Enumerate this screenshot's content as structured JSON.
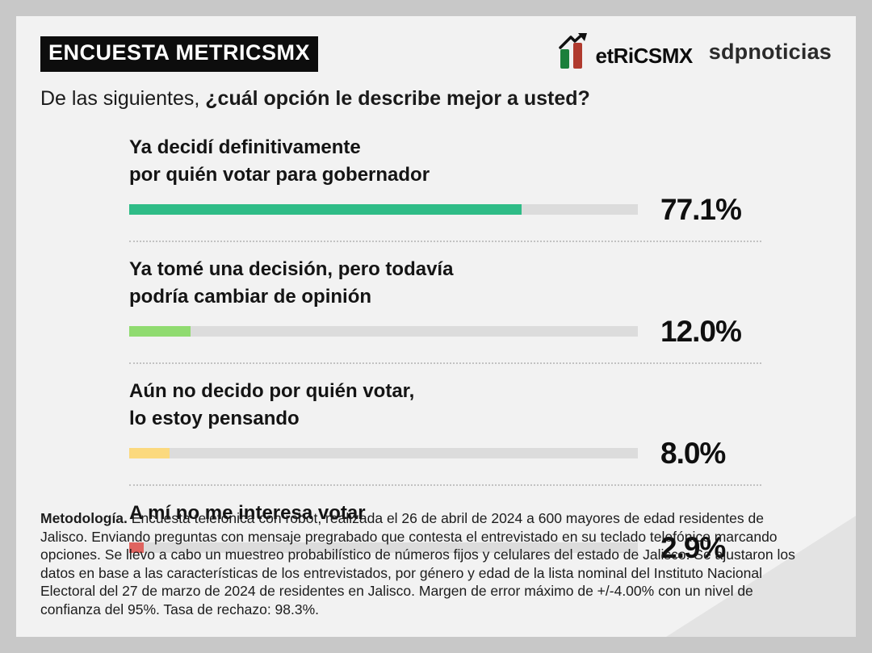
{
  "header": {
    "badge": "ENCUESTA METRICSMX",
    "metrics_wordmark": "etRiCSMX",
    "sdp_wordmark": "sdpnoticias"
  },
  "brand_colors": {
    "logo_green": "#1b7f3b",
    "logo_red": "#b03a2e",
    "logo_arrow": "#111111"
  },
  "question": {
    "prefix": "De las siguientes, ",
    "bold": "¿cuál opción le describe mejor a usted?"
  },
  "options": [
    {
      "label": "Ya decidí definitivamente\npor quién votar para gobernador",
      "value": 77.1,
      "value_label": "77.1%",
      "color": "#2fbc87"
    },
    {
      "label": "Ya tomé una decisión, pero todavía\npodría cambiar de opinión",
      "value": 12.0,
      "value_label": "12.0%",
      "color": "#90db70"
    },
    {
      "label": "Aún no decido por quién votar,\nlo estoy pensando",
      "value": 8.0,
      "value_label": "8.0%",
      "color": "#fbd97e"
    },
    {
      "label": "A mí no me interesa votar",
      "value": 2.9,
      "value_label": "2.9%",
      "color": "#df6460"
    }
  ],
  "methodology": {
    "title": "Metodología.",
    "text": " Encuesta telefónica con robot, realizada el 26 de abril de 2024 a 600 mayores de edad residentes de Jalisco. Enviando preguntas con mensaje pregrabado que contesta el entrevistado en su teclado telefónico marcando opciones. Se llevo a cabo un muestreo probabilístico de números fijos y celulares del estado de Jalisco. Se ajustaron los datos en base a las características de los entrevistados, por género y edad de la lista nominal del Instituto Nacional Electoral del 27 de marzo de 2024 de residentes en Jalisco. Margen de error máximo de +/-4.00% con un nivel de confianza del 95%. Tasa de rechazo: 98.3%."
  },
  "chart_data": {
    "type": "bar",
    "orientation": "horizontal",
    "title": "De las siguientes, ¿cuál opción le describe mejor a usted?",
    "categories": [
      "Ya decidí definitivamente por quién votar para gobernador",
      "Ya tomé una decisión, pero todavía podría cambiar de opinión",
      "Aún no decido por quién votar, lo estoy pensando",
      "A mí no me interesa votar"
    ],
    "values": [
      77.1,
      12.0,
      8.0,
      2.9
    ],
    "value_labels": [
      "77.1%",
      "12.0%",
      "8.0%",
      "2.9%"
    ],
    "bar_colors": [
      "#2fbc87",
      "#90db70",
      "#fbd97e",
      "#df6460"
    ],
    "track_color": "#dcdcdc",
    "xlim": [
      0,
      100
    ],
    "grid": false,
    "legend": false,
    "xlabel": "",
    "ylabel": ""
  }
}
